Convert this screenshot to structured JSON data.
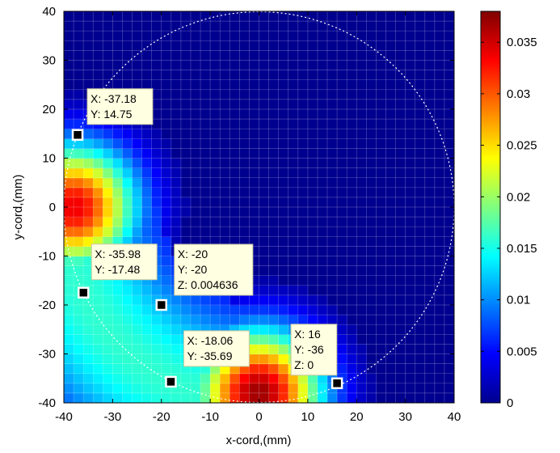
{
  "chart_data": {
    "type": "heatmap",
    "title": "",
    "xlabel": "x-cord,(mm)",
    "ylabel": "y-cord,(mm)",
    "xlim": [
      -40,
      40
    ],
    "ylim": [
      -40,
      40
    ],
    "xticks": [
      -40,
      -30,
      -20,
      -10,
      0,
      10,
      20,
      30,
      40
    ],
    "yticks": [
      -40,
      -30,
      -20,
      -10,
      0,
      10,
      20,
      30,
      40
    ],
    "grid": true,
    "background_value": 0,
    "colormap": "jet",
    "colorbar": {
      "range": [
        0,
        0.038
      ],
      "ticks": [
        0,
        0.005,
        0.01,
        0.015,
        0.02,
        0.025,
        0.03,
        0.035
      ],
      "tick_labels": [
        "0",
        "0.005",
        "0.01",
        "0.015",
        "0.02",
        "0.025",
        "0.03",
        "0.035"
      ]
    },
    "boundary_circle": {
      "center": [
        0,
        0
      ],
      "radius": 40
    },
    "hotspots": [
      {
        "x": -38,
        "y": 0,
        "peak": 0.034
      },
      {
        "x": 0,
        "y": -38,
        "peak": 0.037
      }
    ],
    "datatips": [
      {
        "lines": [
          "X: -37.18",
          "Y: 14.75"
        ],
        "x": -37.18,
        "y": 14.75
      },
      {
        "lines": [
          "X: -35.98",
          "Y: -17.48"
        ],
        "x": -35.98,
        "y": -17.48
      },
      {
        "lines": [
          "X: -20",
          "Y: -20",
          "Z: 0.004636"
        ],
        "x": -20,
        "y": -20,
        "z": 0.004636
      },
      {
        "lines": [
          "X: -18.06",
          "Y: -35.69"
        ],
        "x": -18.06,
        "y": -35.69
      },
      {
        "lines": [
          "X: 16",
          "Y: -36",
          "Z: 0"
        ],
        "x": 16,
        "y": -36,
        "z": 0
      }
    ]
  }
}
